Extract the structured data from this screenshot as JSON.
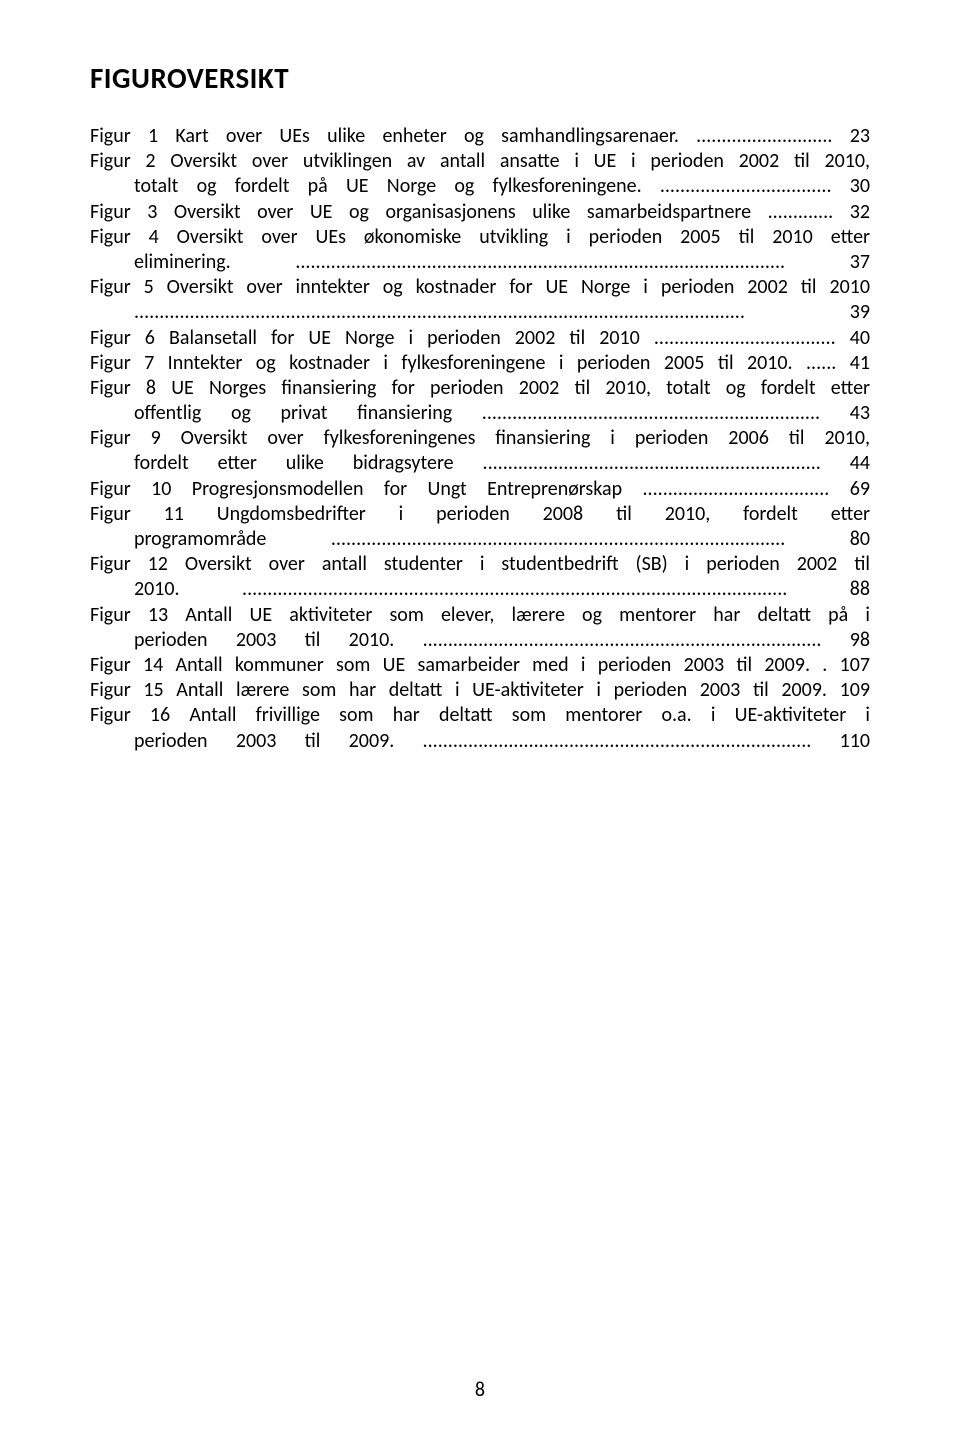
{
  "heading": "FIGUROVERSIKT",
  "entries": [
    {
      "lines": [
        "Figur 1 Kart over UEs ulike enheter og samhandlingsarenaer. ........................... 23"
      ],
      "indentTail": false
    },
    {
      "lines": [
        "Figur 2 Oversikt over utviklingen av antall ansatte i UE i perioden 2002 til 2010,",
        "totalt og fordelt på UE Norge og fylkesforeningene. .................................. 30"
      ],
      "indentTail": true
    },
    {
      "lines": [
        "Figur 3 Oversikt over UE og organisasjonens ulike samarbeidspartnere ............. 32"
      ],
      "indentTail": false
    },
    {
      "lines": [
        "Figur 4 Oversikt over UEs økonomiske utvikling i perioden 2005 til 2010 etter",
        "eliminering. ................................................................................................. 37"
      ],
      "indentTail": true
    },
    {
      "lines": [
        "Figur 5 Oversikt over inntekter og kostnader for UE Norge i perioden 2002 til 2010",
        "......................................................................................................................... 39"
      ],
      "indentTail": true
    },
    {
      "lines": [
        "Figur 6 Balansetall for UE Norge i perioden 2002 til 2010 .................................... 40"
      ],
      "indentTail": false
    },
    {
      "lines": [
        "Figur 7 Inntekter og kostnader i fylkesforeningene i perioden 2005 til 2010. ...... 41"
      ],
      "indentTail": false
    },
    {
      "lines": [
        "Figur 8 UE Norges finansiering for perioden 2002 til 2010, totalt og fordelt etter",
        "offentlig og privat finansiering ................................................................... 43"
      ],
      "indentTail": true
    },
    {
      "lines": [
        "Figur 9 Oversikt over fylkesforeningenes finansiering i perioden 2006 til 2010,",
        "fordelt etter ulike bidragsytere ................................................................... 44"
      ],
      "indentTail": true
    },
    {
      "lines": [
        "Figur 10 Progresjonsmodellen for Ungt Entreprenørskap ..................................... 69"
      ],
      "indentTail": false
    },
    {
      "lines": [
        "Figur  11  Ungdomsbedrifter  i  perioden  2008  til  2010,  fordelt  etter",
        "programområde .......................................................................................... 80"
      ],
      "indentTail": true
    },
    {
      "lines": [
        "Figur 12 Oversikt over antall studenter i studentbedrift (SB) i perioden 2002 til",
        "2010. ............................................................................................................ 88"
      ],
      "indentTail": true
    },
    {
      "lines": [
        "Figur 13 Antall UE aktiviteter som elever, lærere og mentorer har deltatt på i",
        "perioden 2003 til 2010. ............................................................................... 98"
      ],
      "indentTail": true
    },
    {
      "lines": [
        "Figur 14 Antall kommuner som UE samarbeider med i perioden 2003 til 2009. . 107"
      ],
      "indentTail": false
    },
    {
      "lines": [
        "Figur 15 Antall lærere som har deltatt i UE-aktiviteter i perioden 2003 til 2009. 109"
      ],
      "indentTail": false
    },
    {
      "lines": [
        "Figur 16 Antall frivillige som har deltatt som mentorer o.a. i UE-aktiviteter i",
        "perioden 2003 til 2009. ............................................................................. 110"
      ],
      "indentTail": true
    }
  ],
  "pageNumber": "8"
}
